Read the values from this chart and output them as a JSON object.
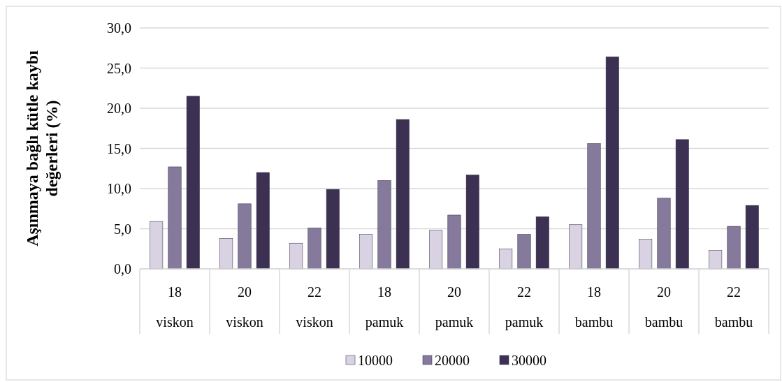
{
  "chart_data": {
    "type": "bar",
    "ylabel": "Aşınmaya bağlı kütle kaybı\ndeğerleri (%)",
    "categories": [
      "18\nviskon",
      "20\nviskon",
      "22\nviskon",
      "18\npamuk",
      "20\npamuk",
      "22\npamuk",
      "18\nbambu",
      "20\nbambu",
      "22\nbambu"
    ],
    "series": [
      {
        "name": "10000",
        "color": "#d8d2e2",
        "values": [
          5.9,
          3.8,
          3.2,
          4.3,
          4.8,
          2.5,
          5.5,
          3.7,
          2.3
        ]
      },
      {
        "name": "20000",
        "color": "#857a9c",
        "values": [
          12.7,
          8.1,
          5.1,
          11.0,
          6.7,
          4.3,
          15.6,
          8.8,
          5.3
        ]
      },
      {
        "name": "30000",
        "color": "#3d3153",
        "values": [
          21.5,
          12.0,
          9.9,
          18.6,
          11.7,
          6.5,
          26.4,
          16.1,
          7.9
        ]
      }
    ],
    "ylim": [
      0,
      30
    ],
    "yticks": [
      {
        "value": 0,
        "label": "0,0"
      },
      {
        "value": 5,
        "label": "5,0"
      },
      {
        "value": 10,
        "label": "10,0"
      },
      {
        "value": 15,
        "label": "15,0"
      },
      {
        "value": 20,
        "label": "20,0"
      },
      {
        "value": 25,
        "label": "25,0"
      },
      {
        "value": 30,
        "label": "30,0"
      }
    ],
    "grid": "y",
    "legend": "bottom"
  }
}
